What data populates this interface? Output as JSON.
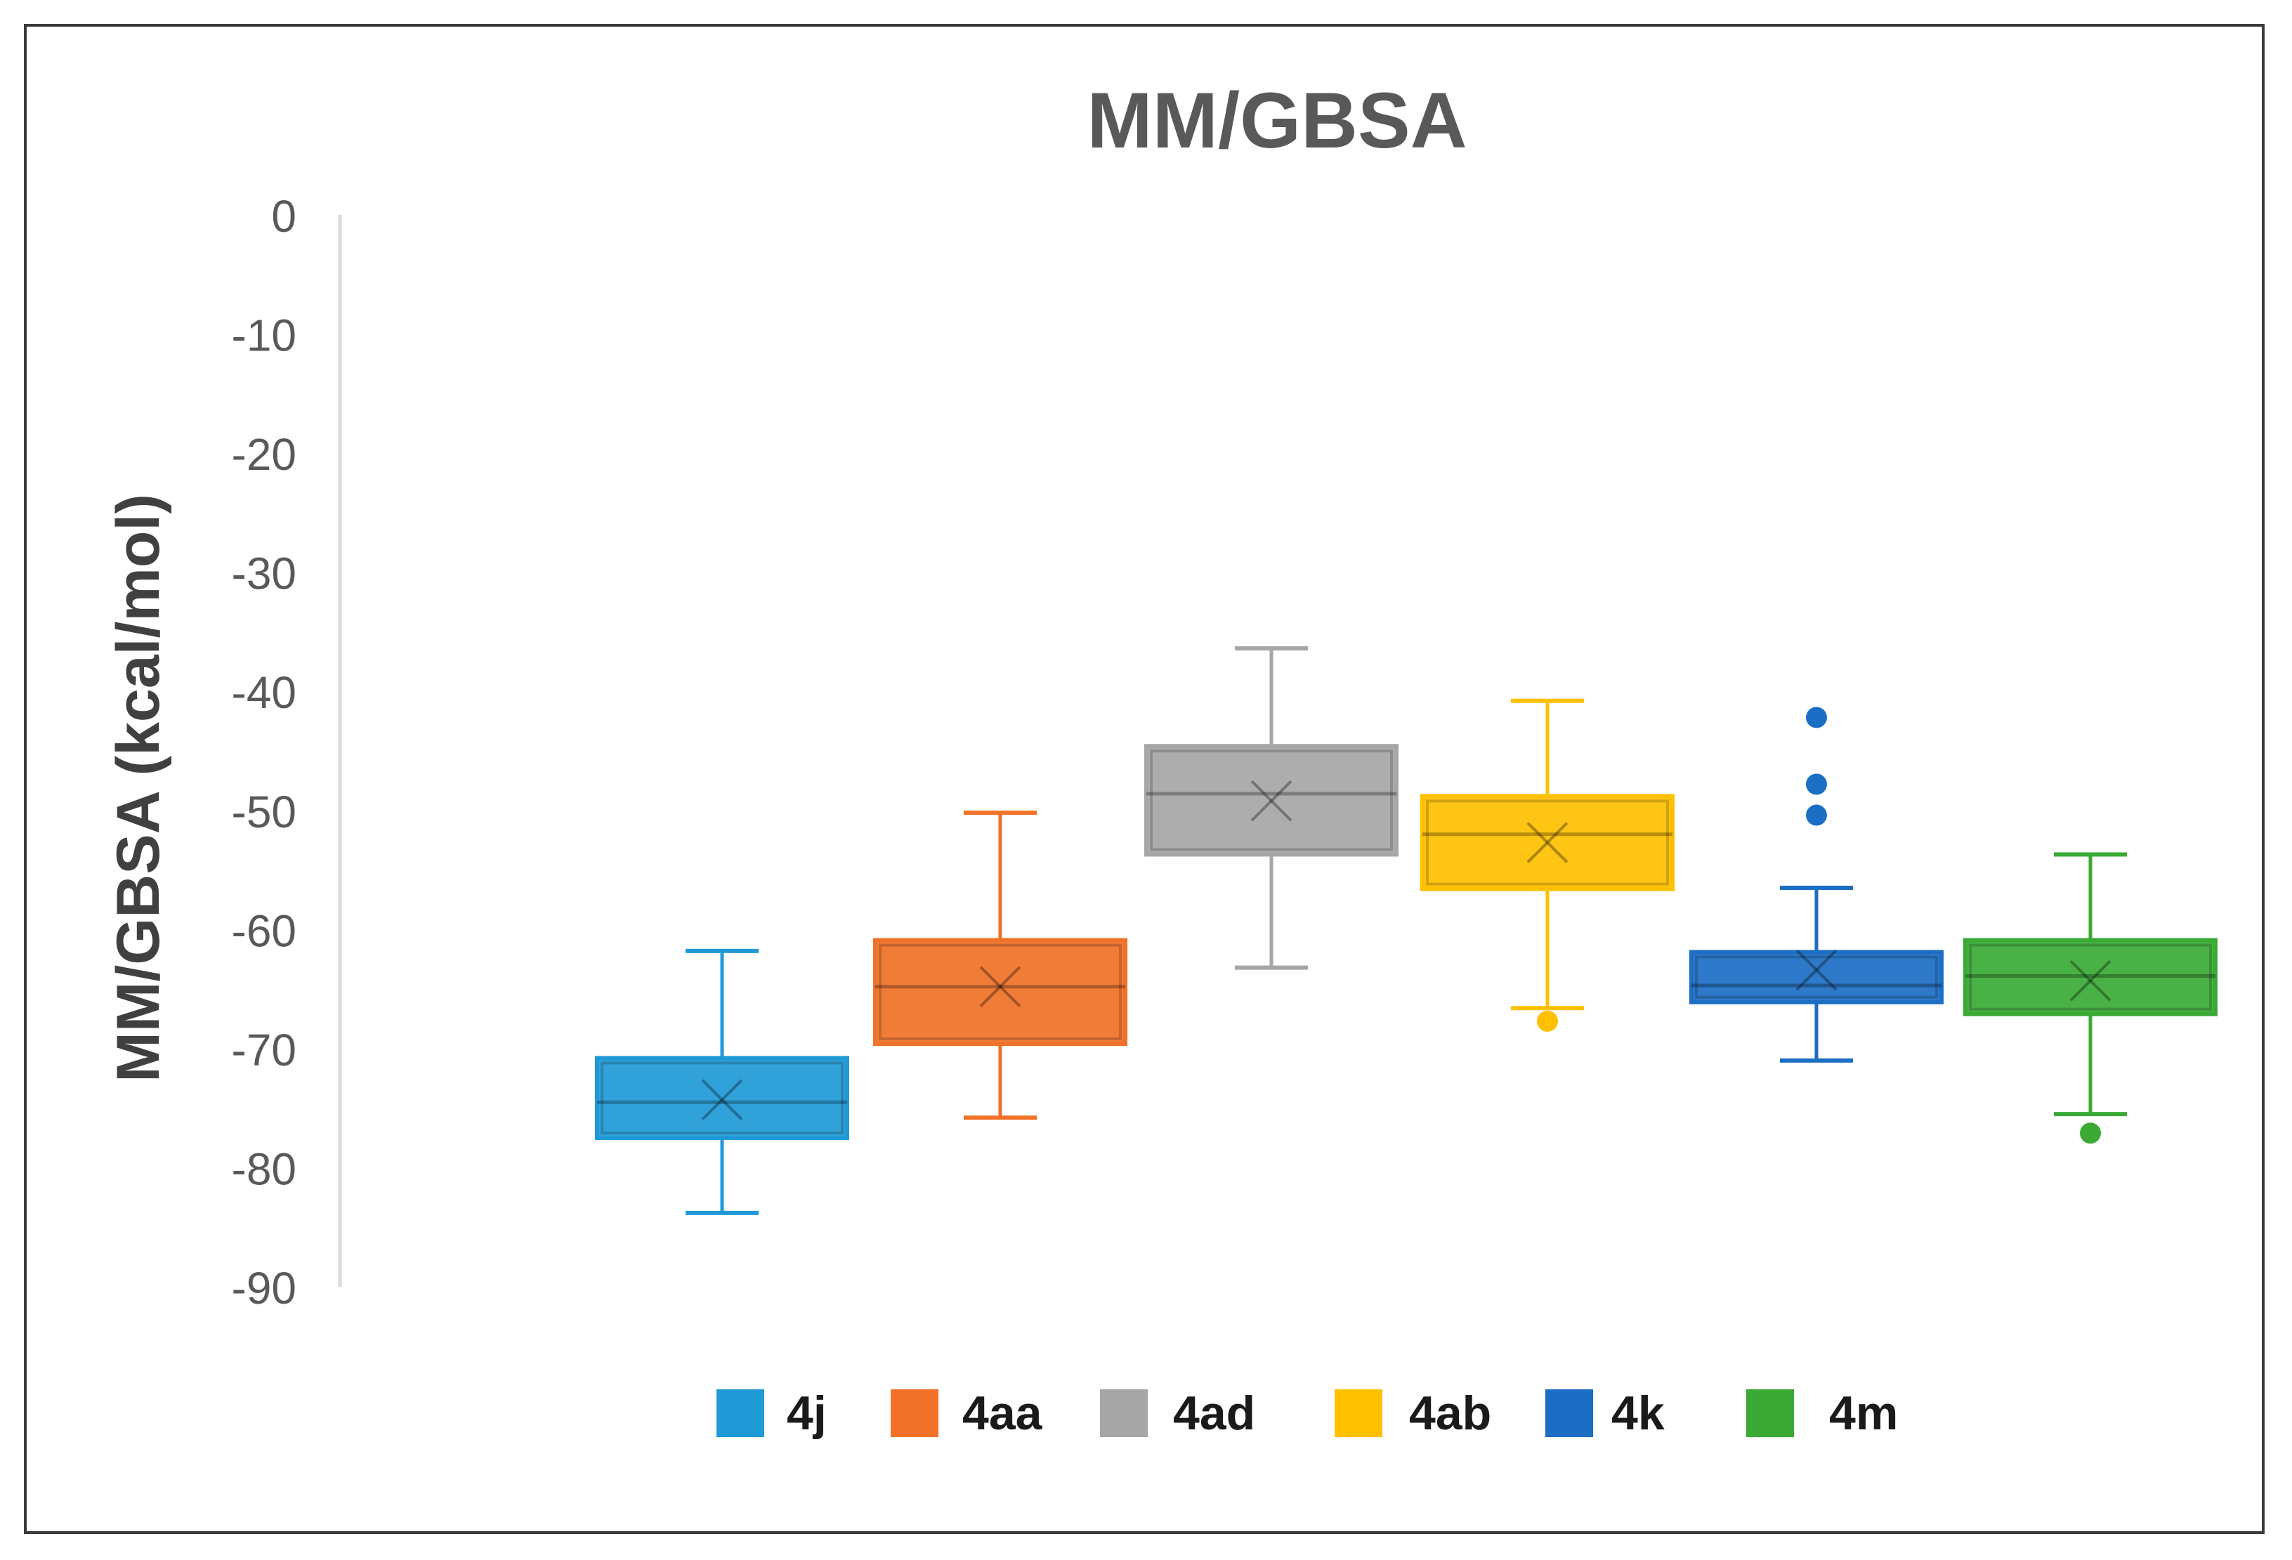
{
  "chart_data": {
    "type": "boxplot",
    "title": "MM/GBSA",
    "xlabel": "",
    "ylabel": "MM/GBSA (kcal/mol)",
    "ylim": [
      -90,
      0
    ],
    "yticks": [
      0,
      -10,
      -20,
      -30,
      -40,
      -50,
      -60,
      -70,
      -80,
      -90
    ],
    "grid": false,
    "legend_position": "bottom",
    "series": [
      {
        "name": "4j",
        "color": "#1F9AD6",
        "min": -83.8,
        "q1": -77.5,
        "median": -74.5,
        "q3": -70.8,
        "max": -61.8,
        "mean": -74.3,
        "outliers": []
      },
      {
        "name": "4aa",
        "color": "#F07127",
        "min": -75.8,
        "q1": -69.6,
        "median": -64.8,
        "q3": -60.9,
        "max": -50.2,
        "mean": -64.8,
        "outliers": []
      },
      {
        "name": "4ad",
        "color": "#A6A6A6",
        "min": -63.2,
        "q1": -53.7,
        "median": -48.6,
        "q3": -44.6,
        "max": -36.4,
        "mean": -49.2,
        "outliers": []
      },
      {
        "name": "4ab",
        "color": "#FFC000",
        "min": -66.6,
        "q1": -56.6,
        "median": -52.0,
        "q3": -48.8,
        "max": -40.8,
        "mean": -52.7,
        "outliers": [
          -67.7
        ]
      },
      {
        "name": "4k",
        "color": "#1C6EC4",
        "min": -71.0,
        "q1": -66.1,
        "median": -64.7,
        "q3": -61.9,
        "max": -56.5,
        "mean": -63.4,
        "outliers": [
          -42.2,
          -47.8,
          -50.4
        ]
      },
      {
        "name": "4m",
        "color": "#3AAA35",
        "min": -75.5,
        "q1": -67.1,
        "median": -63.9,
        "q3": -60.9,
        "max": -53.7,
        "mean": -64.3,
        "outliers": [
          -77.1
        ]
      }
    ]
  }
}
